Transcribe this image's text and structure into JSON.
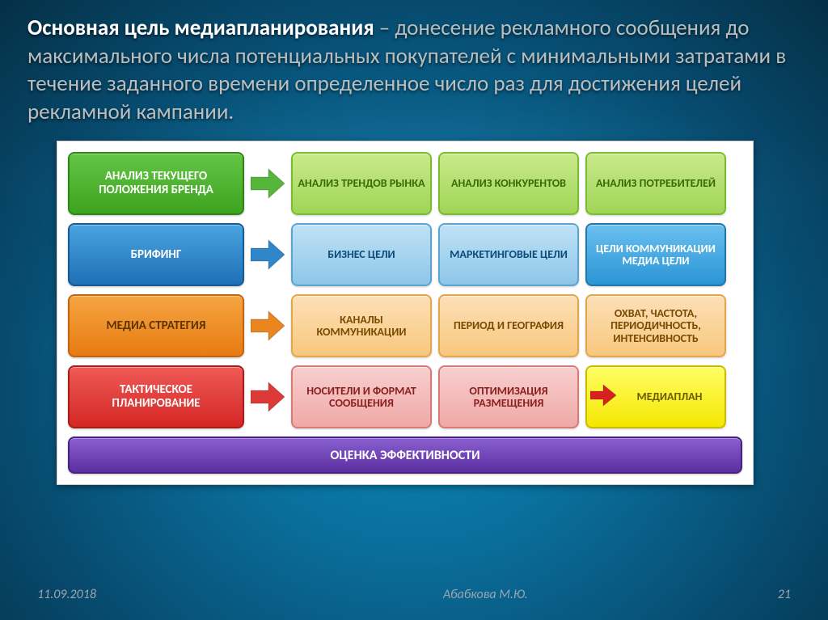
{
  "headline": {
    "bold": "Основная цель медиапланирования",
    "rest": " – донесение рекламного сообщения до максимального числа потенциальных покупателей с минимальными затратами в течение заданного времени определенное число раз для достижения целей рекламной кампании."
  },
  "footer": {
    "date": "11.09.2018",
    "author": "Абабкова М.Ю.",
    "page": "21"
  },
  "diagram": {
    "rows": [
      {
        "lead": {
          "label": "АНАЛИЗ ТЕКУЩЕГО ПОЛОЖЕНИЯ БРЕНДА",
          "bg": "linear-gradient(#63c545,#3ea321)",
          "border": "#2f8516",
          "text": "#ffffff"
        },
        "arrow_color": "#55b63a",
        "cells": [
          {
            "label": "АНАЛИЗ ТРЕНДОВ РЫНКА",
            "bg": "linear-gradient(#c9ea8a,#9fd557)",
            "border": "#7cbb2e",
            "text": "#3a6b00"
          },
          {
            "label": "АНАЛИЗ КОНКУРЕНТОВ",
            "bg": "linear-gradient(#c9ea8a,#9fd557)",
            "border": "#7cbb2e",
            "text": "#3a6b00"
          },
          {
            "label": "АНАЛИЗ ПОТРЕБИТЕЛЕЙ",
            "bg": "linear-gradient(#c9ea8a,#9fd557)",
            "border": "#7cbb2e",
            "text": "#3a6b00"
          }
        ]
      },
      {
        "lead": {
          "label": "БРИФИНГ",
          "bg": "linear-gradient(#4aa4e0,#1f6fb5)",
          "border": "#185a93",
          "text": "#ffffff"
        },
        "arrow_color": "#2f86c9",
        "cells": [
          {
            "label": "БИЗНЕС ЦЕЛИ",
            "bg": "linear-gradient(#bfe2f6,#8ec6e8)",
            "border": "#5aa4d2",
            "text": "#0d4c7a"
          },
          {
            "label": "МАРКЕТИНГОВЫЕ ЦЕЛИ",
            "bg": "linear-gradient(#bfe2f6,#8ec6e8)",
            "border": "#5aa4d2",
            "text": "#0d4c7a"
          },
          {
            "label": "ЦЕЛИ КОММУНИКАЦИИ МЕДИА ЦЕЛИ",
            "bg": "linear-gradient(#6bc0ef,#2a95d5)",
            "border": "#1f77ad",
            "text": "#ffffff"
          }
        ]
      },
      {
        "lead": {
          "label": "МЕДИА СТРАТЕГИЯ",
          "bg": "linear-gradient(#f5a542,#e87b12)",
          "border": "#c4640c",
          "text": "#5a3400"
        },
        "arrow_color": "#ea8520",
        "cells": [
          {
            "label": "КАНАЛЫ КОММУНИКАЦИИ",
            "bg": "linear-gradient(#fde0b8,#f8c77d)",
            "border": "#e3a64a",
            "text": "#7a4a00"
          },
          {
            "label": "ПЕРИОД И ГЕОГРАФИЯ",
            "bg": "linear-gradient(#fde0b8,#f8c77d)",
            "border": "#e3a64a",
            "text": "#7a4a00"
          },
          {
            "label": "ОХВАТ, ЧАСТОТА, ПЕРИОДИЧНОСТЬ, ИНТЕНСИВНОСТЬ",
            "bg": "linear-gradient(#fde0b8,#f8c77d)",
            "border": "#e3a64a",
            "text": "#7a4a00"
          }
        ]
      },
      {
        "lead": {
          "label": "ТАКТИЧЕСКОЕ ПЛАНИРОВАНИЕ",
          "bg": "linear-gradient(#ef5a57,#d42724)",
          "border": "#a81d1a",
          "text": "#ffffff"
        },
        "arrow_color": "#dc3a37",
        "cells": [
          {
            "label": "НОСИТЕЛИ И ФОРМАТ СООБЩЕНИЯ",
            "bg": "linear-gradient(#f7cfce,#efa9a7)",
            "border": "#d77b79",
            "text": "#8a1f1d"
          },
          {
            "label": "ОПТИМИЗАЦИЯ РАЗМЕЩЕНИЯ",
            "bg": "linear-gradient(#f7cfce,#efa9a7)",
            "border": "#d77b79",
            "text": "#8a1f1d"
          },
          {
            "label": "МЕДИАПЛАН",
            "bg": "linear-gradient(#ffff66,#f5e600)",
            "border": "#c9bd00",
            "text": "#6a5a00",
            "mediaplan": true,
            "mini_arrow_color": "#d8201e"
          }
        ]
      }
    ],
    "footer_bar": {
      "label": "ОЦЕНКА ЭФФЕКТИВНОСТИ",
      "bg": "linear-gradient(#8a5fd0,#5b2fa0)",
      "border": "#47237e"
    }
  }
}
